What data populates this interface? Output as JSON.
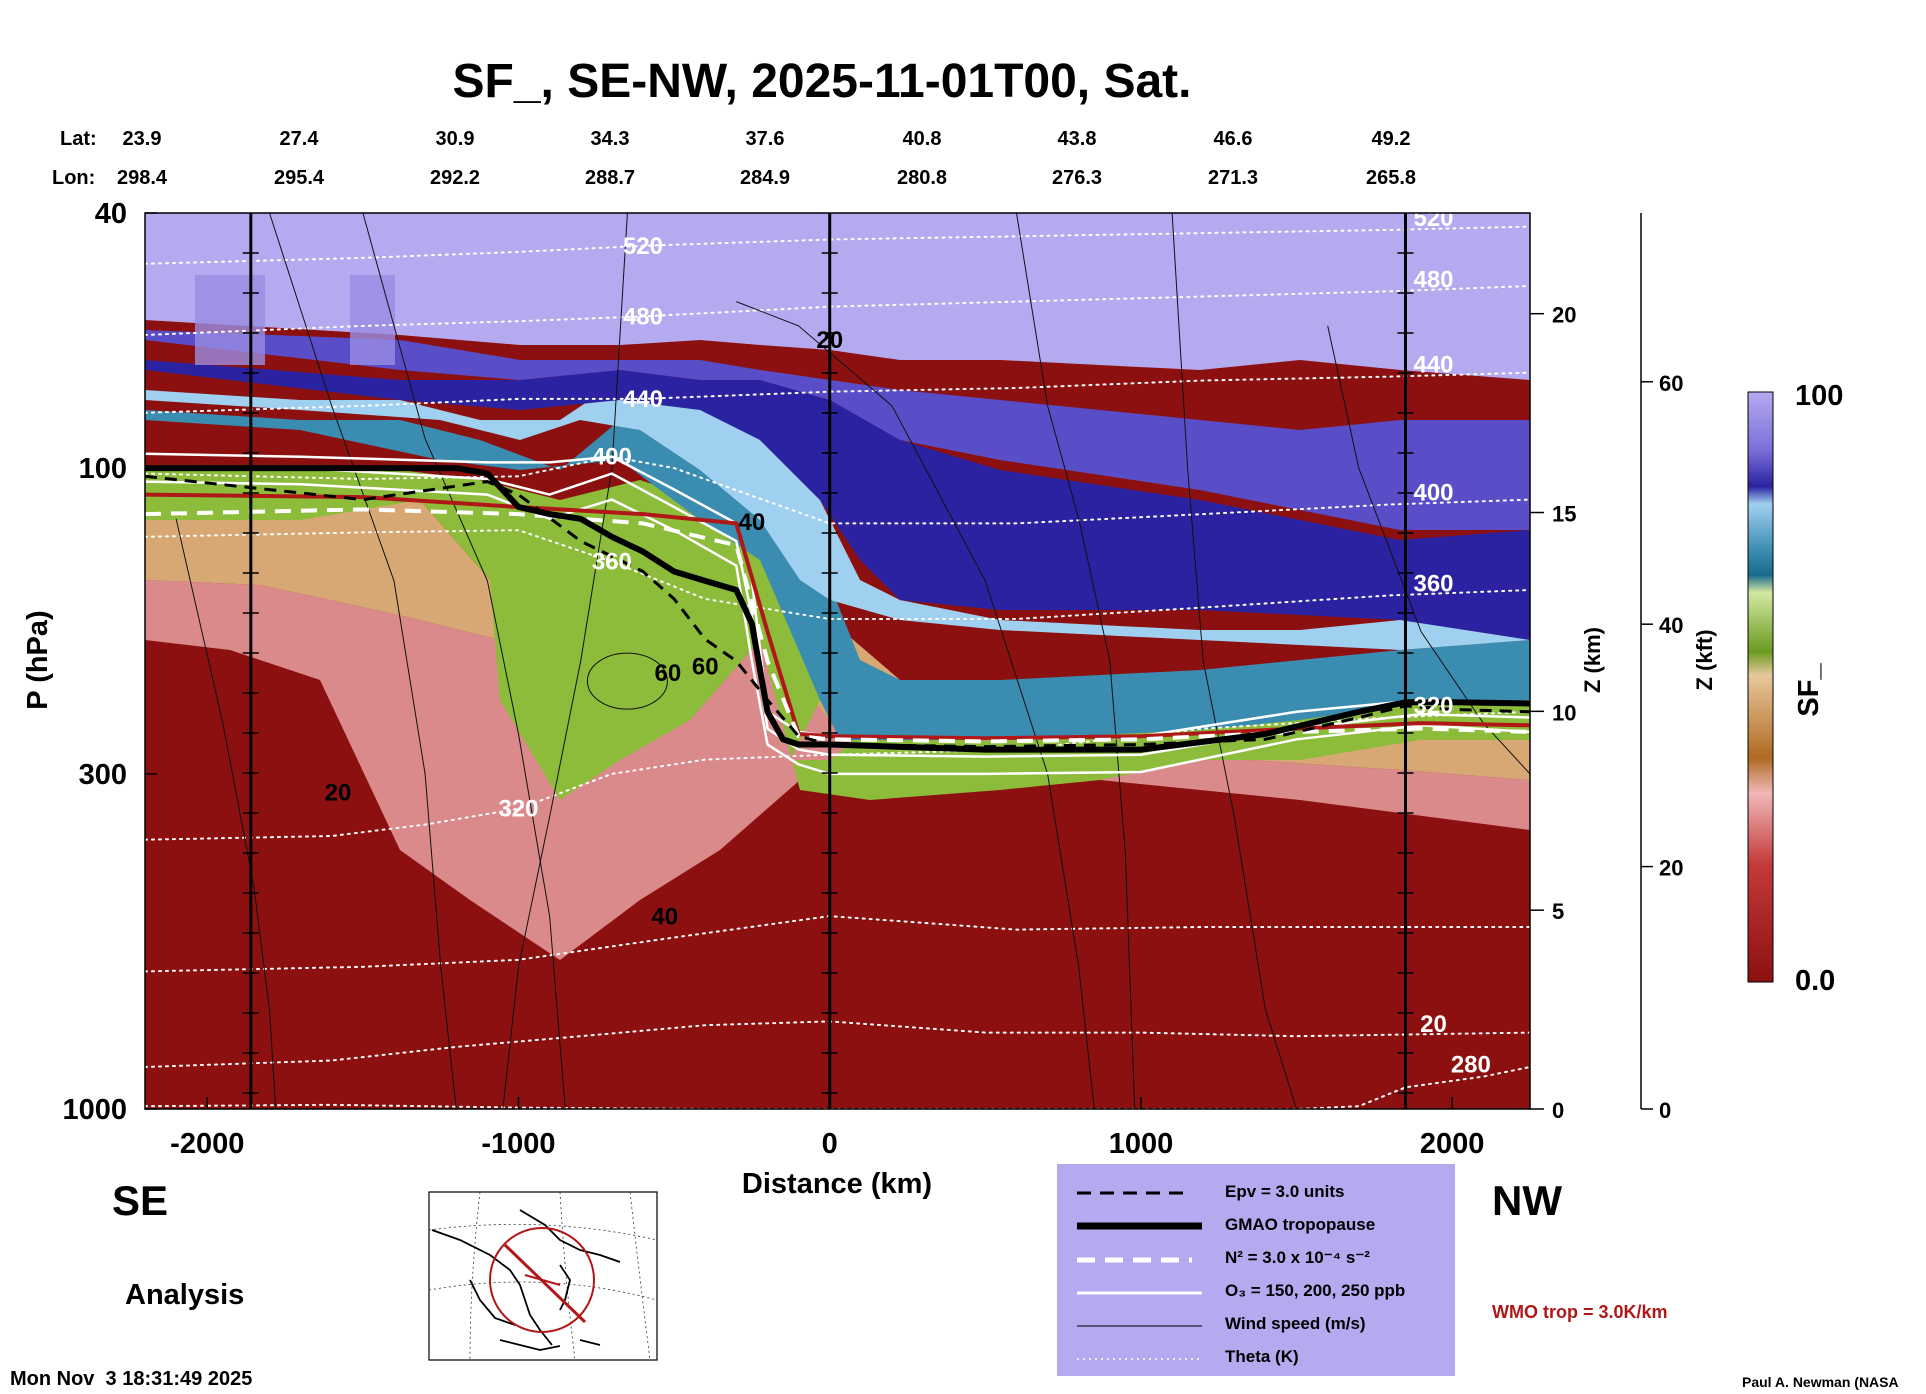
{
  "chart_data": {
    "type": "heatmap",
    "title": "SF_, SE-NW, 2025-11-01T00, Sat.",
    "xlabel": "Distance (km)",
    "ylabel": "P (hPa)",
    "z_km_label": "Z (km)",
    "z_kft_label": "Z (kft)",
    "colorbar_label": "SF_",
    "xlim": [
      -2200,
      2250
    ],
    "ylim": [
      1000,
      40
    ],
    "yscale": "log",
    "x_ticks": [
      -2000,
      -1000,
      0,
      1000,
      2000
    ],
    "x_tick_labels": [
      "-2000",
      "-1000",
      "0",
      "1000",
      "2000"
    ],
    "y_ticks": [
      40,
      100,
      300,
      1000
    ],
    "y_tick_labels": [
      "40",
      "100",
      "300",
      "1000"
    ],
    "z_km_ticks": [
      0,
      5,
      10,
      15,
      20
    ],
    "z_km_tick_labels": [
      "0",
      "5",
      "10",
      "15",
      "20"
    ],
    "z_kft_ticks": [
      0,
      20,
      40,
      60
    ],
    "z_kft_tick_labels": [
      "0",
      "20",
      "40",
      "60"
    ],
    "colorbar_range": [
      0.0,
      100
    ],
    "colorbar_tick_labels": [
      "100",
      "0.0"
    ],
    "colorbar_colors": [
      "#8c1010",
      "#a81a1a",
      "#c43a3a",
      "#d86a6a",
      "#e8a0a0",
      "#f0b8b8",
      "#b06a22",
      "#c48a4a",
      "#d8a874",
      "#e8c89c",
      "#6a9a20",
      "#8cbc3a",
      "#b0d468",
      "#d4e8a0",
      "#1a6a8c",
      "#3a8cb0",
      "#6ab0d4",
      "#a0d0f0",
      "#c0e4fa",
      "#2a22a0",
      "#3a32b8",
      "#5a4ec8",
      "#7a6ed8",
      "#9a8ce4",
      "#b4aaf0"
    ],
    "lat_label": "Lat:",
    "lon_label": "Lon:",
    "lat_values": [
      "23.9",
      "27.4",
      "30.9",
      "34.3",
      "37.6",
      "40.8",
      "43.8",
      "46.6",
      "49.2"
    ],
    "lon_values": [
      "298.4",
      "295.4",
      "292.2",
      "288.7",
      "284.9",
      "280.8",
      "276.3",
      "271.3",
      "265.8"
    ],
    "station_positions_km": [
      -1860,
      0,
      1850
    ],
    "theta_contours": [
      {
        "label": "520",
        "x": [
          -2200,
          -1500,
          -1000,
          -600,
          0,
          600,
          1200,
          1800,
          2250
        ],
        "p": [
          48,
          47,
          46,
          45,
          44,
          43.5,
          43,
          42.5,
          42
        ]
      },
      {
        "label": "480",
        "x": [
          -2200,
          -1500,
          -1000,
          -600,
          0,
          600,
          1200,
          1800,
          2250
        ],
        "p": [
          62,
          60,
          59,
          58,
          56,
          55,
          54,
          53,
          52
        ]
      },
      {
        "label": "440",
        "x": [
          -2200,
          -1500,
          -1000,
          -600,
          0,
          600,
          1200,
          1800,
          2250
        ],
        "p": [
          82,
          80,
          78,
          78,
          76,
          75,
          73,
          72,
          71
        ]
      },
      {
        "label": "400",
        "x": [
          -2200,
          -1500,
          -1000,
          -700,
          -500,
          0,
          600,
          1200,
          1800,
          2250
        ],
        "p": [
          102,
          104,
          103,
          96,
          100,
          122,
          122,
          118,
          114,
          112
        ]
      },
      {
        "label": "360",
        "x": [
          -2200,
          -1500,
          -1000,
          -700,
          -400,
          0,
          600,
          1200,
          1800,
          2250
        ],
        "p": [
          128,
          126,
          125,
          140,
          160,
          172,
          172,
          165,
          158,
          155
        ]
      },
      {
        "label": "320",
        "x": [
          -2200,
          -1600,
          -1300,
          -1000,
          -700,
          -400,
          0,
          600,
          1200,
          1800,
          2250
        ],
        "p": [
          380,
          375,
          360,
          340,
          300,
          285,
          280,
          275,
          255,
          245,
          240
        ]
      },
      {
        "label": "",
        "x": [
          -2200,
          -1500,
          -1000,
          -500,
          0,
          600,
          1200,
          1800,
          2250
        ],
        "p": [
          610,
          600,
          585,
          540,
          500,
          525,
          520,
          520,
          520
        ]
      },
      {
        "label": "20",
        "x": [
          -2200,
          -1600,
          -1200,
          -800,
          -400,
          0,
          500,
          1000,
          1500,
          2250
        ],
        "p": [
          860,
          840,
          800,
          770,
          740,
          730,
          760,
          760,
          770,
          760
        ]
      },
      {
        "label": "280",
        "x": [
          -2200,
          -1600,
          -1000,
          -400,
          0,
          1500,
          1700,
          1850,
          2100,
          2250
        ],
        "p": [
          990,
          985,
          995,
          1000,
          1000,
          1000,
          990,
          925,
          890,
          860
        ]
      }
    ],
    "epv_contour": {
      "x": [
        -2200,
        -1500,
        -1100,
        -1000,
        -800,
        -600,
        -500,
        -400,
        -300,
        -200,
        -100,
        0,
        500,
        1000,
        1400,
        1700,
        1850,
        2000,
        2250
      ],
      "p": [
        103,
        112,
        105,
        110,
        130,
        145,
        160,
        185,
        200,
        230,
        262,
        270,
        272,
        270,
        265,
        245,
        235,
        238,
        240
      ]
    },
    "gmao_tropopause": {
      "x": [
        -2200,
        -1800,
        -1500,
        -1200,
        -1100,
        -1000,
        -900,
        -800,
        -700,
        -600,
        -500,
        -400,
        -300,
        -250,
        -200,
        -150,
        -100,
        0,
        500,
        1000,
        1400,
        1700,
        1850,
        2000,
        2250
      ],
      "p": [
        100,
        100,
        100,
        100,
        102,
        115,
        118,
        120,
        128,
        135,
        145,
        150,
        155,
        175,
        240,
        265,
        270,
        270,
        275,
        275,
        260,
        240,
        232,
        232,
        233
      ]
    },
    "n2_contour": {
      "x": [
        -2200,
        -1500,
        -1000,
        -600,
        -300,
        -200,
        -100,
        0,
        500,
        1000,
        1500,
        1900,
        2250
      ],
      "p": [
        118,
        116,
        118,
        122,
        132,
        200,
        262,
        265,
        267,
        265,
        258,
        255,
        258
      ]
    },
    "wmo_tropopause": {
      "x": [
        -2200,
        -1500,
        -1000,
        -600,
        -300,
        -200,
        -100,
        0,
        500,
        1000,
        1500,
        1900,
        2250
      ],
      "p": [
        110,
        111,
        115,
        118,
        122,
        180,
        260,
        262,
        264,
        262,
        255,
        250,
        252
      ]
    },
    "o3_contours": [
      {
        "x": [
          -2200,
          -1700,
          -1100,
          -900,
          -700,
          -500,
          -300,
          -250,
          -200,
          -100,
          0,
          500,
          1000,
          1500,
          1900,
          2250
        ],
        "p": [
          95,
          96,
          98,
          98,
          96,
          108,
          122,
          150,
          240,
          258,
          262,
          265,
          262,
          240,
          230,
          233
        ]
      },
      {
        "x": [
          -2200,
          -1700,
          -1100,
          -900,
          -700,
          -500,
          -300,
          -250,
          -200,
          -100,
          0,
          500,
          1000,
          1500,
          1900,
          2250
        ],
        "p": [
          100,
          100,
          104,
          110,
          102,
          115,
          130,
          170,
          255,
          275,
          280,
          282,
          280,
          255,
          242,
          245
        ]
      },
      {
        "x": [
          -2200,
          -1700,
          -1100,
          -900,
          -700,
          -500,
          -300,
          -250,
          -200,
          -100,
          0,
          500,
          1000,
          1500,
          1900,
          2250
        ],
        "p": [
          105,
          106,
          110,
          120,
          112,
          125,
          142,
          200,
          270,
          290,
          300,
          300,
          298,
          265,
          252,
          258
        ]
      }
    ],
    "wind_labels": [
      {
        "text": "20",
        "x": 0,
        "p": 65
      },
      {
        "text": "40",
        "x": -250,
        "p": 125
      },
      {
        "text": "60",
        "x": -520,
        "p": 215
      },
      {
        "text": "60",
        "x": -400,
        "p": 210
      },
      {
        "text": "20",
        "x": -1580,
        "p": 330
      },
      {
        "text": "40",
        "x": -530,
        "p": 515
      }
    ],
    "legend_items": [
      {
        "style": "dashed",
        "label": "Epv = 3.0 units"
      },
      {
        "style": "thick",
        "label": "GMAO tropopause"
      },
      {
        "style": "white-dashed",
        "label": "N² = 3.0 x 10⁻⁴ s⁻²"
      },
      {
        "style": "white-solid",
        "label": "O₃ = 150, 200, 250 ppb"
      },
      {
        "style": "thin",
        "label": "Wind speed (m/s)"
      },
      {
        "style": "dotted",
        "label": "Theta (K)"
      }
    ],
    "wmo_label": "WMO trop = 3.0K/km",
    "se_label": "SE",
    "nw_label": "NW",
    "analysis_label": "Analysis",
    "timestamp": "Mon Nov  3 18:31:49 2025",
    "credit": "Paul A. Newman (NASA"
  },
  "colors": {
    "wmo_red": "#b01818",
    "legend_bg": "#b4aaf0"
  }
}
